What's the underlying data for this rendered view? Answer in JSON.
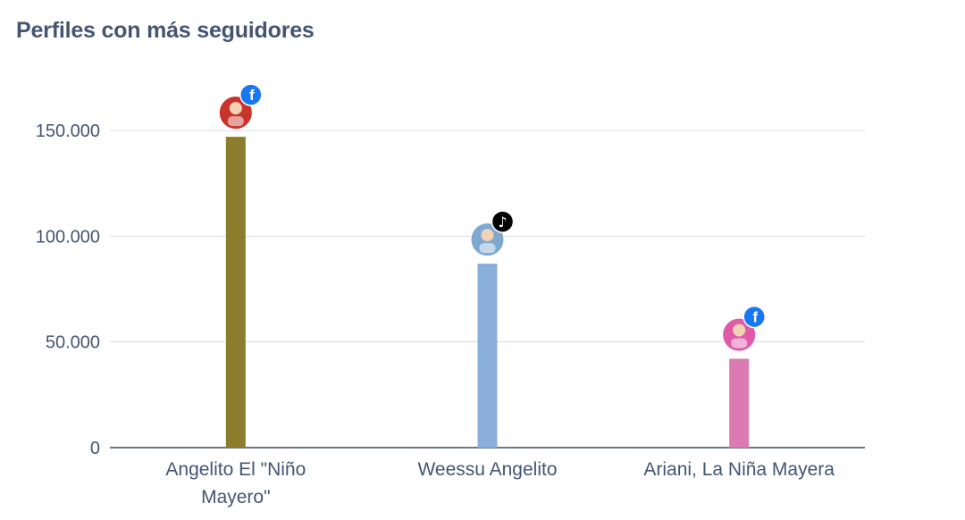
{
  "chart_data": {
    "type": "bar",
    "title": "Perfiles con más seguidores",
    "xlabel": "",
    "ylabel": "",
    "ylim": [
      0,
      150000
    ],
    "yticks": [
      {
        "value": 0,
        "label": "0"
      },
      {
        "value": 50000,
        "label": "50.000"
      },
      {
        "value": 100000,
        "label": "100.000"
      },
      {
        "value": 150000,
        "label": "150.000"
      }
    ],
    "grid": true,
    "categories": [
      {
        "label_lines": [
          "Angelito El \"Niño",
          "Mayero\""
        ],
        "value": 147000,
        "color": "#8a7e2c",
        "platform": "facebook-icon",
        "avatar_color": "#c9332a"
      },
      {
        "label_lines": [
          "Weessu Angelito"
        ],
        "value": 87000,
        "color": "#8aafdb",
        "platform": "tiktok-icon",
        "avatar_color": "#7fa8cf"
      },
      {
        "label_lines": [
          "Ariani, La Niña Mayera"
        ],
        "value": 42000,
        "color": "#dc7bb2",
        "platform": "facebook-icon",
        "avatar_color": "#e05aa8"
      }
    ]
  }
}
